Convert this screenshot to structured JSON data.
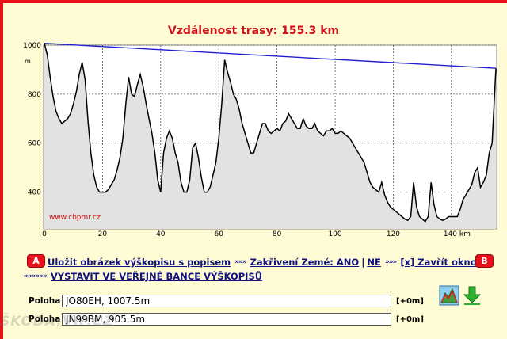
{
  "chart_data": {
    "type": "area",
    "title": "Vzdálenost trasy: 155.3 km",
    "xlabel": "km",
    "ylabel": "m",
    "xlim": [
      0,
      155.3
    ],
    "ylim": [
      250,
      1000
    ],
    "xticks": [
      0,
      20,
      40,
      60,
      80,
      100,
      120,
      140
    ],
    "x_tick_labels": [
      "0",
      "20",
      "40",
      "60",
      "80",
      "100",
      "120",
      "140 km"
    ],
    "yticks": [
      400,
      600,
      800,
      1000
    ],
    "y_tick_labels": [
      "400",
      "600",
      "800",
      "1000"
    ],
    "grid": true,
    "watermark": "www.cbpmr.cz",
    "series": [
      {
        "name": "profile",
        "x": [
          0,
          1,
          2,
          3,
          4,
          5,
          6,
          7,
          8,
          9,
          10,
          11,
          12,
          13,
          14,
          15,
          16,
          17,
          18,
          19,
          20,
          21,
          22,
          23,
          24,
          25,
          26,
          27,
          28,
          29,
          30,
          31,
          32,
          33,
          34,
          35,
          36,
          37,
          38,
          39,
          40,
          41,
          42,
          43,
          44,
          45,
          46,
          47,
          48,
          49,
          50,
          51,
          52,
          53,
          54,
          55,
          56,
          57,
          58,
          59,
          60,
          61,
          62,
          63,
          64,
          65,
          66,
          67,
          68,
          69,
          70,
          71,
          72,
          73,
          74,
          75,
          76,
          77,
          78,
          79,
          80,
          81,
          82,
          83,
          84,
          85,
          86,
          87,
          88,
          89,
          90,
          91,
          92,
          93,
          94,
          95,
          96,
          97,
          98,
          99,
          100,
          101,
          102,
          103,
          104,
          105,
          106,
          107,
          108,
          109,
          110,
          111,
          112,
          113,
          114,
          115,
          116,
          117,
          118,
          119,
          120,
          121,
          122,
          123,
          124,
          125,
          126,
          127,
          128,
          129,
          130,
          131,
          132,
          133,
          134,
          135,
          136,
          137,
          138,
          139,
          140,
          141,
          142,
          143,
          144,
          145,
          146,
          147,
          148,
          149,
          150,
          151,
          152,
          153,
          154,
          155.3
        ],
        "y": [
          1007,
          960,
          870,
          790,
          730,
          700,
          680,
          690,
          700,
          720,
          760,
          810,
          880,
          930,
          860,
          690,
          560,
          470,
          420,
          400,
          400,
          400,
          410,
          430,
          450,
          490,
          540,
          620,
          760,
          870,
          800,
          790,
          840,
          880,
          830,
          760,
          700,
          640,
          560,
          450,
          400,
          560,
          620,
          650,
          620,
          560,
          520,
          440,
          400,
          400,
          450,
          580,
          600,
          540,
          460,
          400,
          400,
          420,
          470,
          520,
          620,
          760,
          940,
          890,
          850,
          800,
          780,
          740,
          680,
          640,
          600,
          560,
          560,
          600,
          640,
          680,
          680,
          650,
          640,
          650,
          660,
          650,
          680,
          690,
          720,
          700,
          680,
          660,
          660,
          700,
          670,
          660,
          660,
          680,
          650,
          640,
          630,
          650,
          650,
          660,
          640,
          640,
          650,
          640,
          630,
          620,
          600,
          580,
          560,
          540,
          520,
          480,
          440,
          420,
          410,
          400,
          440,
          390,
          360,
          340,
          330,
          320,
          310,
          300,
          290,
          285,
          300,
          440,
          340,
          300,
          290,
          280,
          300,
          440,
          350,
          300,
          290,
          285,
          290,
          300,
          300,
          300,
          300,
          330,
          370,
          390,
          410,
          430,
          480,
          500,
          420,
          440,
          470,
          560,
          600,
          905.5
        ],
        "values_in_data_units": true
      },
      {
        "name": "line",
        "x": [
          0,
          155.3
        ],
        "y": [
          1007.5,
          905.5
        ]
      }
    ]
  },
  "toolbar": {
    "badge_a": "A",
    "badge_b": "B",
    "save_link": "Uložit obrázek výškopisu s popisem",
    "curvature_label": "Zakřivení Země: ANO",
    "curvature_sep": "|",
    "curvature_no": "NE",
    "close_link": "[x] Zavřít okno",
    "separator": "»»»",
    "publish_link": "VYSTAVIT VE VEŘEJNÉ BANCE VÝŠKOPISŮ",
    "publish_prefix": "»»»»»»"
  },
  "points": {
    "a_label": "Poloha A:",
    "a_value": "JO80EH, 1007.5m",
    "a_offset": "[+0m]",
    "b_label": "Poloha B:",
    "b_value": "JN99BM, 905.5m",
    "b_offset": "[+0m]"
  },
  "colors": {
    "frame": "#e8101a",
    "title": "#d0101a",
    "profile_line": "#000000",
    "profile_fill": "#e0e0e0",
    "los_line": "#2020d0",
    "link": "#101080"
  },
  "watermark_text": "ŠKODA.VIP.CZ"
}
